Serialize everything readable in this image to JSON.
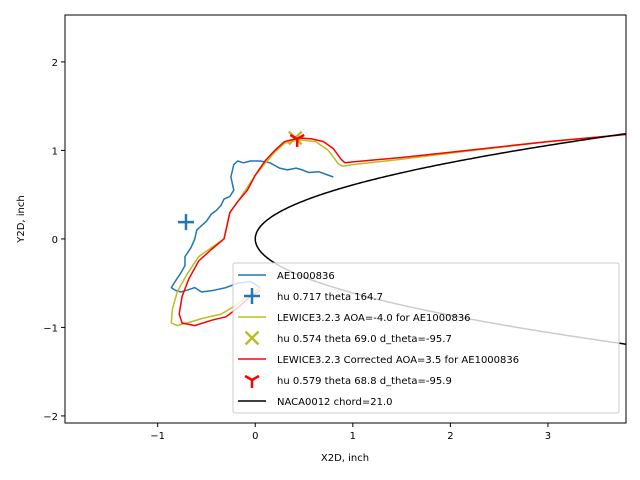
{
  "chart_data": {
    "type": "line",
    "xlabel": "X2D, inch",
    "ylabel": "Y2D, inch",
    "xlim": [
      -1.95,
      3.8
    ],
    "ylim": [
      -2.08,
      2.53
    ],
    "xticks": [
      -1,
      0,
      1,
      2,
      3
    ],
    "yticks": [
      -2,
      -1,
      0,
      1,
      2
    ],
    "grid": false,
    "legend_position": "lower-right",
    "colors": {
      "ice_shape": "#1f77b4",
      "lewice": "#bcbd22",
      "lewice_corrected": "#ff0000",
      "airfoil": "#000000"
    },
    "series": [
      {
        "name": "AE1000836",
        "kind": "line",
        "color": "#1f77b4",
        "x": [
          0.8,
          0.65,
          0.55,
          0.48,
          0.42,
          0.33,
          0.25,
          0.15,
          0.05,
          -0.05,
          -0.12,
          -0.18,
          -0.22,
          -0.25,
          -0.22,
          -0.26,
          -0.32,
          -0.35,
          -0.4,
          -0.45,
          -0.5,
          -0.55,
          -0.6,
          -0.62,
          -0.66,
          -0.72,
          -0.72,
          -0.76,
          -0.82,
          -0.86,
          -0.82,
          -0.76,
          -0.7,
          -0.62,
          -0.55,
          -0.42,
          -0.3,
          -0.18,
          -0.05,
          0.05
        ],
        "y": [
          0.7,
          0.76,
          0.75,
          0.78,
          0.8,
          0.78,
          0.8,
          0.86,
          0.88,
          0.88,
          0.86,
          0.88,
          0.84,
          0.7,
          0.55,
          0.48,
          0.45,
          0.38,
          0.32,
          0.28,
          0.2,
          0.15,
          0.1,
          0.0,
          -0.1,
          -0.2,
          -0.3,
          -0.38,
          -0.48,
          -0.55,
          -0.58,
          -0.6,
          -0.58,
          -0.55,
          -0.6,
          -0.58,
          -0.55,
          -0.5,
          -0.48,
          -0.55
        ]
      },
      {
        "name": "hu 0.717 theta 164.7",
        "kind": "marker",
        "marker": "plus",
        "color": "#1f77b4",
        "x": [
          -0.71
        ],
        "y": [
          0.19
        ]
      },
      {
        "name": "LEWICE3.2.3 AOA=-4.0 for AE1000836",
        "kind": "line",
        "color": "#bcbd22",
        "x": [
          3.8,
          3.0,
          2.0,
          1.5,
          1.0,
          0.9,
          0.85,
          0.75,
          0.62,
          0.45,
          0.3,
          0.2,
          0.1,
          0.0,
          -0.1,
          -0.18,
          -0.26,
          -0.3,
          -0.32,
          -0.45,
          -0.58,
          -0.7,
          -0.8,
          -0.85,
          -0.86,
          -0.8,
          -0.7,
          -0.55,
          -0.35,
          -0.2,
          -0.05,
          0.05
        ],
        "y": [
          1.18,
          1.1,
          0.97,
          0.9,
          0.84,
          0.82,
          0.85,
          1.0,
          1.1,
          1.12,
          1.08,
          0.98,
          0.85,
          0.72,
          0.55,
          0.42,
          0.3,
          0.1,
          0.0,
          -0.1,
          -0.2,
          -0.4,
          -0.6,
          -0.8,
          -0.95,
          -0.98,
          -0.95,
          -0.9,
          -0.85,
          -0.75,
          -0.62,
          -0.55
        ]
      },
      {
        "name": "hu 0.574 theta 69.0 d_theta=-95.7",
        "kind": "marker",
        "marker": "x",
        "color": "#bcbd22",
        "x": [
          0.41
        ],
        "y": [
          1.14
        ]
      },
      {
        "name": "LEWICE3.2.3 Corrected AOA=3.5 for AE1000836",
        "kind": "line",
        "color": "#ff0000",
        "x": [
          3.8,
          3.0,
          2.0,
          1.5,
          1.0,
          0.92,
          0.88,
          0.8,
          0.7,
          0.58,
          0.45,
          0.3,
          0.2,
          0.1,
          0.0,
          -0.08,
          -0.18,
          -0.26,
          -0.3,
          -0.32,
          -0.45,
          -0.58,
          -0.68,
          -0.75,
          -0.78,
          -0.75,
          -0.62,
          -0.45,
          -0.3,
          -0.18,
          -0.05,
          0.05
        ],
        "y": [
          1.18,
          1.1,
          0.98,
          0.92,
          0.87,
          0.86,
          0.9,
          1.02,
          1.1,
          1.13,
          1.14,
          1.1,
          1.0,
          0.88,
          0.72,
          0.55,
          0.42,
          0.3,
          0.1,
          0.0,
          -0.12,
          -0.25,
          -0.45,
          -0.65,
          -0.85,
          -0.95,
          -0.98,
          -0.92,
          -0.88,
          -0.78,
          -0.65,
          -0.58
        ]
      },
      {
        "name": "hu 0.579 theta 68.8 d_theta=-95.9",
        "kind": "marker",
        "marker": "tri",
        "color": "#ff0000",
        "x": [
          0.43
        ],
        "y": [
          1.13
        ]
      },
      {
        "name": "NACA0012 chord=21.0",
        "kind": "airfoil",
        "color": "#000000",
        "x_range": [
          0,
          3.8
        ],
        "y_scale": 0.61
      }
    ]
  }
}
